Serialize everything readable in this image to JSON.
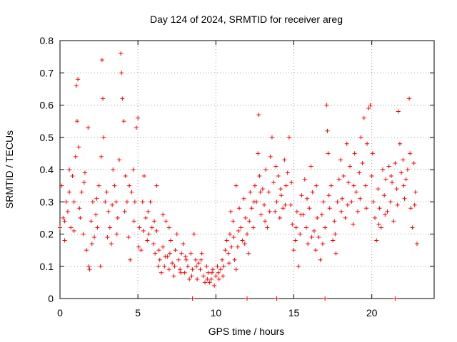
{
  "chart_data": {
    "type": "scatter",
    "title": "Day 124 of 2024, SRMTID for receiver areg",
    "xlabel": "GPS time / hours",
    "ylabel": "SRMTID / TECUs",
    "xlim": [
      0,
      24
    ],
    "ylim": [
      0,
      0.8
    ],
    "grid": true,
    "marker": "plus",
    "marker_color": "#ff0000",
    "x_ticks": [
      0,
      5,
      10,
      15,
      20
    ],
    "x_tick_labels": [
      "0",
      "5",
      "10",
      "15",
      "20"
    ],
    "y_ticks": [
      0,
      0.1,
      0.2,
      0.3,
      0.4,
      0.5,
      0.6,
      0.7,
      0.8
    ],
    "y_tick_labels": [
      "0",
      "0.1",
      "0.2",
      "0.3",
      "0.4",
      "0.5",
      "0.6",
      "0.7",
      "0.8"
    ],
    "series": [
      {
        "name": "SRMTID",
        "points": [
          [
            0.0,
            0.22
          ],
          [
            0.1,
            0.35
          ],
          [
            0.2,
            0.25
          ],
          [
            0.3,
            0.18
          ],
          [
            0.4,
            0.3
          ],
          [
            0.5,
            0.27
          ],
          [
            0.6,
            0.4
          ],
          [
            0.7,
            0.22
          ],
          [
            0.8,
            0.38
          ],
          [
            0.9,
            0.3
          ],
          [
            1.0,
            0.44
          ],
          [
            1.05,
            0.66
          ],
          [
            1.1,
            0.55
          ],
          [
            1.15,
            0.68
          ],
          [
            1.2,
            0.47
          ],
          [
            1.3,
            0.25
          ],
          [
            1.4,
            0.33
          ],
          [
            1.5,
            0.2
          ],
          [
            1.6,
            0.39
          ],
          [
            1.7,
            0.15
          ],
          [
            1.8,
            0.53
          ],
          [
            1.85,
            0.1
          ],
          [
            1.9,
            0.09
          ],
          [
            2.0,
            0.24
          ],
          [
            2.1,
            0.3
          ],
          [
            2.2,
            0.19
          ],
          [
            2.3,
            0.26
          ],
          [
            2.4,
            0.22
          ],
          [
            2.5,
            0.35
          ],
          [
            2.6,
            0.1
          ],
          [
            2.7,
            0.74
          ],
          [
            2.75,
            0.62
          ],
          [
            2.8,
            0.5
          ],
          [
            2.9,
            0.3
          ],
          [
            3.0,
            0.33
          ],
          [
            3.1,
            0.27
          ],
          [
            3.2,
            0.22
          ],
          [
            3.3,
            0.17
          ],
          [
            3.4,
            0.4
          ],
          [
            3.5,
            0.35
          ],
          [
            3.6,
            0.3
          ],
          [
            3.7,
            0.25
          ],
          [
            3.8,
            0.43
          ],
          [
            3.9,
            0.76
          ],
          [
            3.95,
            0.7
          ],
          [
            4.0,
            0.62
          ],
          [
            4.1,
            0.55
          ],
          [
            4.2,
            0.38
          ],
          [
            4.3,
            0.3
          ],
          [
            4.4,
            0.19
          ],
          [
            4.5,
            0.12
          ],
          [
            4.6,
            0.33
          ],
          [
            4.7,
            0.4
          ],
          [
            4.8,
            0.3
          ],
          [
            4.9,
            0.53
          ],
          [
            5.0,
            0.56
          ],
          [
            5.1,
            0.22
          ],
          [
            5.2,
            0.15
          ],
          [
            5.3,
            0.3
          ],
          [
            5.4,
            0.38
          ],
          [
            5.5,
            0.25
          ],
          [
            5.6,
            0.18
          ],
          [
            5.7,
            0.2
          ],
          [
            5.8,
            0.3
          ],
          [
            5.9,
            0.22
          ],
          [
            6.0,
            0.17
          ],
          [
            6.1,
            0.14
          ],
          [
            6.2,
            0.21
          ],
          [
            6.3,
            0.1
          ],
          [
            6.4,
            0.12
          ],
          [
            6.5,
            0.08
          ],
          [
            6.6,
            0.16
          ],
          [
            6.7,
            0.1
          ],
          [
            6.8,
            0.24
          ],
          [
            6.9,
            0.13
          ],
          [
            7.0,
            0.09
          ],
          [
            7.1,
            0.18
          ],
          [
            7.2,
            0.11
          ],
          [
            7.3,
            0.07
          ],
          [
            7.4,
            0.15
          ],
          [
            7.5,
            0.2
          ],
          [
            7.6,
            0.12
          ],
          [
            7.7,
            0.09
          ],
          [
            7.8,
            0.14
          ],
          [
            7.9,
            0.17
          ],
          [
            8.0,
            0.08
          ],
          [
            8.1,
            0.12
          ],
          [
            8.2,
            0.1
          ],
          [
            8.3,
            0.06
          ],
          [
            8.4,
            0.14
          ],
          [
            8.5,
            0.09
          ],
          [
            8.6,
            0.2
          ],
          [
            8.7,
            0.12
          ],
          [
            8.8,
            0.06
          ],
          [
            8.9,
            0.11
          ],
          [
            9.0,
            0.09
          ],
          [
            9.1,
            0.14
          ],
          [
            9.2,
            0.07
          ],
          [
            9.3,
            0.05
          ],
          [
            9.4,
            0.1
          ],
          [
            9.5,
            0.08
          ],
          [
            9.6,
            0.05
          ],
          [
            9.7,
            0.06
          ],
          [
            9.8,
            0.09
          ],
          [
            9.9,
            0.04
          ],
          [
            10.0,
            0.07
          ],
          [
            10.1,
            0.1
          ],
          [
            10.2,
            0.06
          ],
          [
            10.3,
            0.09
          ],
          [
            10.4,
            0.12
          ],
          [
            10.5,
            0.1
          ],
          [
            10.6,
            0.15
          ],
          [
            10.7,
            0.18
          ],
          [
            10.8,
            0.14
          ],
          [
            10.9,
            0.2
          ],
          [
            11.0,
            0.16
          ],
          [
            11.1,
            0.24
          ],
          [
            11.2,
            0.12
          ],
          [
            11.3,
            0.09
          ],
          [
            11.4,
            0.16
          ],
          [
            11.5,
            0.28
          ],
          [
            11.6,
            0.22
          ],
          [
            11.7,
            0.18
          ],
          [
            11.8,
            0.31
          ],
          [
            11.9,
            0.25
          ],
          [
            12.0,
            0.2
          ],
          [
            12.1,
            0.14
          ],
          [
            12.2,
            0.33
          ],
          [
            12.3,
            0.28
          ],
          [
            12.4,
            0.22
          ],
          [
            12.5,
            0.35
          ],
          [
            12.6,
            0.3
          ],
          [
            12.7,
            0.45
          ],
          [
            12.75,
            0.57
          ],
          [
            12.8,
            0.38
          ],
          [
            12.9,
            0.26
          ],
          [
            13.0,
            0.34
          ],
          [
            13.1,
            0.29
          ],
          [
            13.2,
            0.4
          ],
          [
            13.3,
            0.22
          ],
          [
            13.4,
            0.33
          ],
          [
            13.5,
            0.44
          ],
          [
            13.6,
            0.5
          ],
          [
            13.7,
            0.36
          ],
          [
            13.8,
            0.27
          ],
          [
            13.9,
            0.3
          ],
          [
            14.0,
            0.38
          ],
          [
            14.1,
            0.25
          ],
          [
            14.2,
            0.32
          ],
          [
            14.3,
            0.28
          ],
          [
            14.4,
            0.43
          ],
          [
            14.5,
            0.35
          ],
          [
            14.6,
            0.39
          ],
          [
            14.7,
            0.5
          ],
          [
            14.8,
            0.29
          ],
          [
            14.9,
            0.23
          ],
          [
            15.0,
            0.15
          ],
          [
            15.1,
            0.18
          ],
          [
            15.2,
            0.27
          ],
          [
            15.3,
            0.1
          ],
          [
            15.4,
            0.2
          ],
          [
            15.5,
            0.32
          ],
          [
            15.6,
            0.26
          ],
          [
            15.7,
            0.37
          ],
          [
            15.8,
            0.22
          ],
          [
            15.9,
            0.17
          ],
          [
            16.0,
            0.28
          ],
          [
            16.1,
            0.41
          ],
          [
            16.2,
            0.33
          ],
          [
            16.3,
            0.21
          ],
          [
            16.4,
            0.15
          ],
          [
            16.5,
            0.25
          ],
          [
            16.6,
            0.19
          ],
          [
            16.7,
            0.12
          ],
          [
            16.8,
            0.26
          ],
          [
            16.9,
            0.3
          ],
          [
            17.0,
            0.22
          ],
          [
            17.1,
            0.6
          ],
          [
            17.15,
            0.52
          ],
          [
            17.2,
            0.45
          ],
          [
            17.3,
            0.28
          ],
          [
            17.4,
            0.35
          ],
          [
            17.5,
            0.18
          ],
          [
            17.6,
            0.24
          ],
          [
            17.7,
            0.14
          ],
          [
            17.8,
            0.3
          ],
          [
            17.9,
            0.37
          ],
          [
            18.0,
            0.43
          ],
          [
            18.1,
            0.31
          ],
          [
            18.2,
            0.38
          ],
          [
            18.3,
            0.25
          ],
          [
            18.4,
            0.48
          ],
          [
            18.5,
            0.36
          ],
          [
            18.6,
            0.41
          ],
          [
            18.7,
            0.3
          ],
          [
            18.8,
            0.23
          ],
          [
            18.9,
            0.45
          ],
          [
            19.0,
            0.33
          ],
          [
            19.1,
            0.27
          ],
          [
            19.2,
            0.39
          ],
          [
            19.3,
            0.5
          ],
          [
            19.4,
            0.42
          ],
          [
            19.5,
            0.56
          ],
          [
            19.6,
            0.35
          ],
          [
            19.7,
            0.48
          ],
          [
            19.8,
            0.59
          ],
          [
            19.9,
            0.6
          ],
          [
            20.0,
            0.38
          ],
          [
            20.1,
            0.3
          ],
          [
            20.2,
            0.25
          ],
          [
            20.3,
            0.18
          ],
          [
            20.4,
            0.34
          ],
          [
            20.5,
            0.28
          ],
          [
            20.6,
            0.22
          ],
          [
            20.7,
            0.4
          ],
          [
            20.8,
            0.32
          ],
          [
            20.9,
            0.37
          ],
          [
            21.0,
            0.27
          ],
          [
            21.1,
            0.41
          ],
          [
            21.2,
            0.3
          ],
          [
            21.3,
            0.36
          ],
          [
            21.4,
            0.24
          ],
          [
            21.5,
            0.42
          ],
          [
            21.6,
            0.34
          ],
          [
            21.7,
            0.58
          ],
          [
            21.8,
            0.48
          ],
          [
            21.9,
            0.39
          ],
          [
            22.0,
            0.43
          ],
          [
            22.1,
            0.31
          ],
          [
            22.2,
            0.37
          ],
          [
            22.3,
            0.4
          ],
          [
            22.4,
            0.62
          ],
          [
            22.5,
            0.28
          ],
          [
            22.6,
            0.22
          ],
          [
            22.7,
            0.42
          ],
          [
            22.8,
            0.33
          ],
          [
            22.9,
            0.17
          ],
          [
            0.3,
            0.24
          ],
          [
            0.6,
            0.33
          ],
          [
            0.9,
            0.21
          ],
          [
            1.25,
            0.28
          ],
          [
            1.55,
            0.36
          ],
          [
            2.05,
            0.17
          ],
          [
            2.35,
            0.31
          ],
          [
            2.65,
            0.44
          ],
          [
            3.05,
            0.19
          ],
          [
            3.35,
            0.29
          ],
          [
            3.65,
            0.2
          ],
          [
            4.15,
            0.27
          ],
          [
            4.45,
            0.35
          ],
          [
            4.75,
            0.24
          ],
          [
            5.05,
            0.16
          ],
          [
            5.35,
            0.21
          ],
          [
            5.65,
            0.27
          ],
          [
            6.05,
            0.24
          ],
          [
            6.35,
            0.15
          ],
          [
            6.75,
            0.13
          ],
          [
            7.05,
            0.14
          ],
          [
            7.35,
            0.1
          ],
          [
            7.75,
            0.08
          ],
          [
            8.05,
            0.13
          ],
          [
            8.45,
            0.07
          ],
          [
            8.75,
            0.1
          ],
          [
            9.05,
            0.12
          ],
          [
            9.45,
            0.06
          ],
          [
            9.75,
            0.08
          ],
          [
            10.15,
            0.08
          ],
          [
            10.45,
            0.07
          ],
          [
            10.85,
            0.11
          ],
          [
            11.15,
            0.19
          ],
          [
            11.45,
            0.21
          ],
          [
            11.85,
            0.17
          ],
          [
            12.15,
            0.24
          ],
          [
            12.45,
            0.3
          ],
          [
            12.85,
            0.33
          ],
          [
            13.15,
            0.24
          ],
          [
            13.45,
            0.27
          ],
          [
            13.85,
            0.41
          ],
          [
            14.15,
            0.34
          ],
          [
            14.45,
            0.29
          ],
          [
            14.85,
            0.36
          ],
          [
            15.15,
            0.22
          ],
          [
            15.45,
            0.26
          ],
          [
            15.85,
            0.31
          ],
          [
            16.15,
            0.19
          ],
          [
            16.45,
            0.35
          ],
          [
            16.85,
            0.17
          ],
          [
            17.25,
            0.32
          ],
          [
            17.65,
            0.2
          ],
          [
            18.05,
            0.27
          ],
          [
            18.45,
            0.29
          ],
          [
            18.85,
            0.35
          ],
          [
            19.25,
            0.31
          ],
          [
            19.65,
            0.28
          ],
          [
            20.05,
            0.45
          ],
          [
            20.45,
            0.23
          ],
          [
            20.85,
            0.26
          ],
          [
            21.25,
            0.38
          ],
          [
            21.65,
            0.29
          ],
          [
            22.05,
            0.35
          ],
          [
            22.45,
            0.45
          ],
          [
            22.75,
            0.29
          ],
          [
            6.2,
            0.35
          ],
          [
            6.6,
            0.26
          ],
          [
            7.0,
            0.22
          ],
          [
            10.95,
            0.27
          ],
          [
            11.3,
            0.35
          ],
          [
            12.0,
            0.0
          ],
          [
            13.9,
            0.0
          ],
          [
            17.0,
            0.0
          ],
          [
            21.5,
            0.0
          ],
          [
            8.5,
            0.0
          ]
        ]
      }
    ]
  }
}
